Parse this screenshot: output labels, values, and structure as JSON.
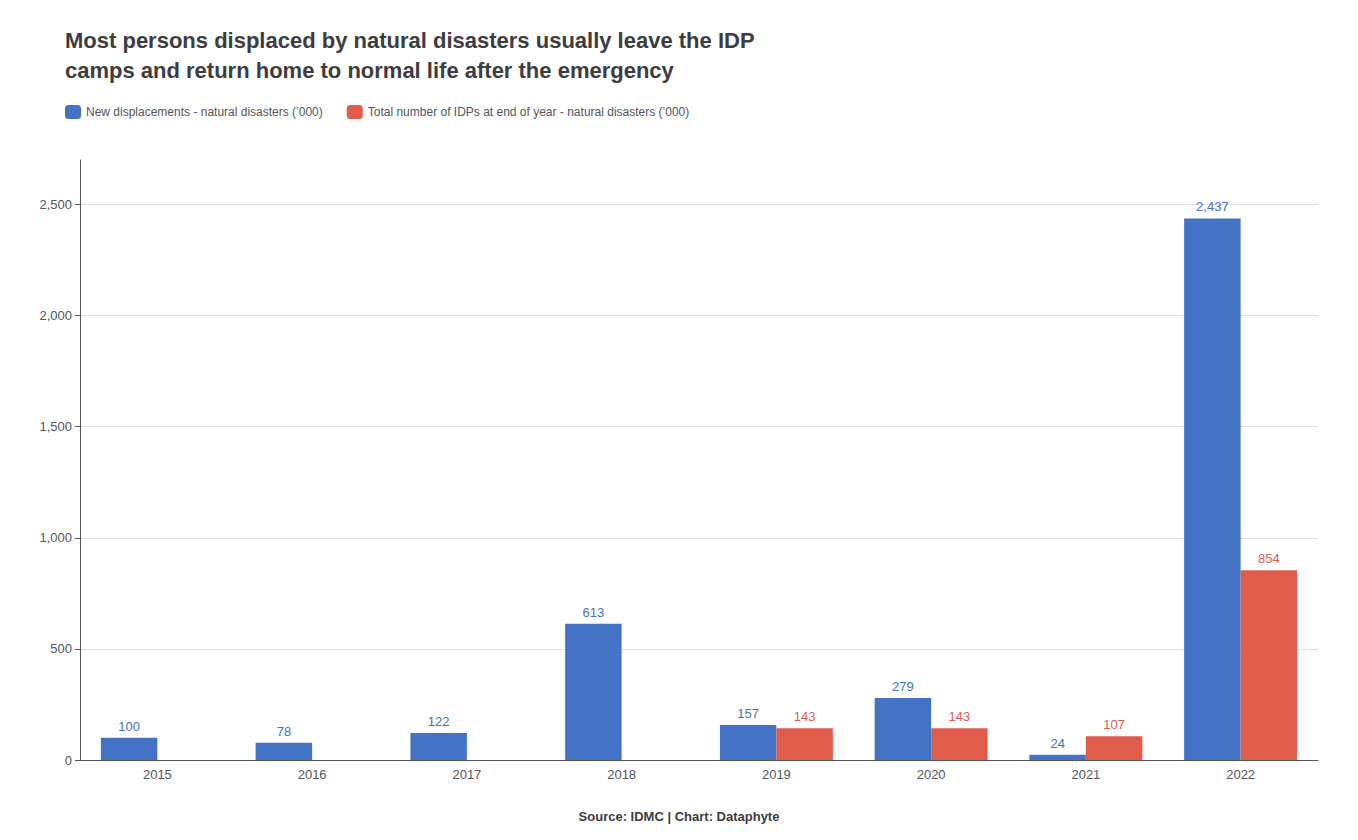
{
  "chart_data": {
    "type": "bar",
    "title": "Most persons displaced by natural disasters usually leave the IDP\ncamps and return home to normal life after the emergency",
    "annotations": [
      "Source: IDMC | Chart: Dataphyte"
    ],
    "categories": [
      "2015",
      "2016",
      "2017",
      "2018",
      "2019",
      "2020",
      "2021",
      "2022"
    ],
    "series": [
      {
        "name": "New displacements - natural disasters (’000)",
        "color": "#4472C4",
        "values": [
          100,
          78,
          122,
          613,
          157,
          279,
          24,
          2437
        ],
        "value_labels": [
          "100",
          "78",
          "122",
          "613",
          "157",
          "279",
          "24",
          "2,437"
        ]
      },
      {
        "name": "Total number of IDPs at end of year - natural disasters (’000)",
        "color": "#E05C4B",
        "values": [
          null,
          null,
          null,
          null,
          143,
          143,
          107,
          854
        ]
      }
    ],
    "ylim": [
      0,
      2700
    ],
    "yticks": [
      0,
      500,
      {
        "value": 1000,
        "label": "1,000"
      },
      {
        "value": 1500,
        "label": "1,500"
      },
      {
        "value": 2000,
        "label": "2,000"
      },
      {
        "value": 2500,
        "label": "2,500"
      }
    ],
    "grid": true,
    "legend": "top",
    "data_labels": true
  }
}
